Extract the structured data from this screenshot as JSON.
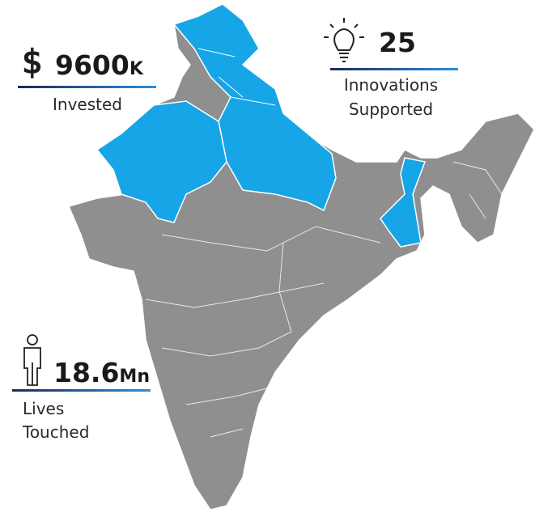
{
  "stats": [
    {
      "value": "9600",
      "unit": "K",
      "label": [
        "Invested"
      ]
    },
    {
      "value": "25",
      "label": [
        "Innovations",
        "Supported"
      ]
    },
    {
      "value": "18.6",
      "unit": "Mn",
      "label": [
        "Lives",
        "Touched"
      ]
    }
  ]
}
